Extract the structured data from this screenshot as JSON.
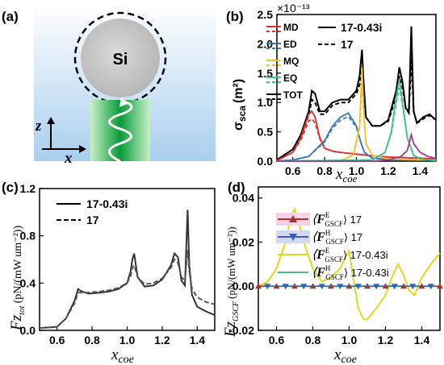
{
  "panel_a": {
    "label": "(a)",
    "particle_label": "Si",
    "axis_z": "z",
    "axis_x": "x"
  },
  "chart_data": [
    {
      "panel": "(b)",
      "type": "line",
      "ylabel_main": "σ",
      "ylabel_sub": "sca",
      "ylabel_unit": "(m²)",
      "xlabel_main": "x",
      "xlabel_sub": "coe",
      "sci_note": "×10⁻¹³",
      "xlim": [
        0.5,
        1.5
      ],
      "ylim": [
        0,
        2.5
      ],
      "xticks": [
        "0.6",
        "0.8",
        "1.0",
        "1.2",
        "1.4"
      ],
      "xtick_values": [
        0.6,
        0.8,
        1.0,
        1.2,
        1.4
      ],
      "yticks": [
        "0.0",
        "0.5",
        "1.0",
        "1.5",
        "2.0",
        "2.5"
      ],
      "ytick_values": [
        0,
        0.5,
        1.0,
        1.5,
        2.0,
        2.5
      ],
      "legend_components": [
        "MD",
        "ED",
        "MQ",
        "EQ",
        "TOT"
      ],
      "legend_cases": [
        "17-0.43i",
        "17"
      ],
      "colors": {
        "MD": "#e03030",
        "ED": "#3a78b4",
        "MQ": "#f2c230",
        "EQ": "#3fbf8a",
        "TOT": "#000000"
      },
      "series": [
        {
          "name": "TOT",
          "case": "17-0.43i",
          "x": [
            0.5,
            0.6,
            0.65,
            0.7,
            0.72,
            0.74,
            0.77,
            0.8,
            0.85,
            0.9,
            0.95,
            1.0,
            1.02,
            1.035,
            1.045,
            1.06,
            1.1,
            1.15,
            1.2,
            1.25,
            1.27,
            1.29,
            1.31,
            1.33,
            1.345,
            1.36,
            1.38,
            1.42,
            1.46,
            1.5
          ],
          "y": [
            0.02,
            0.2,
            0.45,
            0.85,
            1.2,
            1.15,
            0.85,
            0.85,
            1.0,
            1.05,
            1.05,
            1.2,
            1.45,
            1.9,
            1.35,
            0.75,
            0.6,
            0.6,
            0.7,
            1.2,
            1.6,
            1.35,
            0.9,
            0.85,
            2.3,
            0.85,
            0.65,
            0.75,
            0.8,
            0.7
          ]
        },
        {
          "name": "TOT",
          "case": "17",
          "x": [
            0.5,
            0.6,
            0.65,
            0.7,
            0.72,
            0.74,
            0.77,
            0.8,
            0.85,
            0.9,
            0.95,
            1.0,
            1.02,
            1.035,
            1.045,
            1.06,
            1.1,
            1.15,
            1.2,
            1.25,
            1.27,
            1.29,
            1.31,
            1.33,
            1.345,
            1.36,
            1.38,
            1.42,
            1.46,
            1.5
          ],
          "y": [
            0.02,
            0.2,
            0.4,
            0.78,
            1.05,
            1.0,
            0.8,
            0.8,
            0.95,
            1.0,
            1.0,
            1.15,
            1.3,
            1.6,
            1.2,
            0.75,
            0.6,
            0.6,
            0.68,
            1.1,
            1.45,
            1.25,
            0.9,
            0.82,
            1.75,
            0.85,
            0.65,
            0.72,
            0.78,
            0.7
          ]
        },
        {
          "name": "MD",
          "case": "17-0.43i",
          "x": [
            0.5,
            0.6,
            0.65,
            0.7,
            0.72,
            0.74,
            0.77,
            0.8,
            0.85,
            0.9,
            1.0,
            1.1,
            1.2,
            1.3,
            1.4,
            1.5
          ],
          "y": [
            0.01,
            0.15,
            0.4,
            0.8,
            0.85,
            0.75,
            0.4,
            0.22,
            0.17,
            0.15,
            0.12,
            0.09,
            0.07,
            0.06,
            0.05,
            0.04
          ]
        },
        {
          "name": "MD",
          "case": "17",
          "x": [
            0.5,
            0.6,
            0.65,
            0.7,
            0.72,
            0.74,
            0.77,
            0.8,
            0.85,
            0.9,
            1.0,
            1.1,
            1.2,
            1.3,
            1.4,
            1.5
          ],
          "y": [
            0.01,
            0.15,
            0.36,
            0.68,
            0.72,
            0.65,
            0.38,
            0.22,
            0.17,
            0.15,
            0.12,
            0.09,
            0.07,
            0.06,
            0.05,
            0.04
          ]
        },
        {
          "name": "ED",
          "case": "17-0.43i",
          "x": [
            0.5,
            0.6,
            0.7,
            0.8,
            0.85,
            0.9,
            0.95,
            1.0,
            1.03,
            1.05,
            1.1,
            1.2,
            1.3,
            1.4,
            1.5
          ],
          "y": [
            0.0,
            0.02,
            0.08,
            0.35,
            0.6,
            0.75,
            0.82,
            0.6,
            0.3,
            0.15,
            0.05,
            0.03,
            0.02,
            0.02,
            0.02
          ]
        },
        {
          "name": "ED",
          "case": "17",
          "x": [
            0.5,
            0.6,
            0.7,
            0.8,
            0.85,
            0.9,
            0.95,
            1.0,
            1.03,
            1.05,
            1.1,
            1.2,
            1.3,
            1.4,
            1.5
          ],
          "y": [
            0.0,
            0.02,
            0.08,
            0.33,
            0.56,
            0.7,
            0.76,
            0.58,
            0.3,
            0.15,
            0.05,
            0.03,
            0.02,
            0.02,
            0.02
          ]
        },
        {
          "name": "MQ",
          "case": "17-0.43i",
          "x": [
            0.5,
            0.9,
            0.98,
            1.02,
            1.035,
            1.045,
            1.06,
            1.1,
            1.2,
            1.3,
            1.4,
            1.5
          ],
          "y": [
            0.0,
            0.01,
            0.1,
            0.6,
            1.6,
            0.9,
            0.3,
            0.1,
            0.04,
            0.03,
            0.02,
            0.02
          ]
        },
        {
          "name": "MQ",
          "case": "17",
          "x": [
            0.5,
            0.9,
            0.98,
            1.02,
            1.035,
            1.045,
            1.06,
            1.1,
            1.2,
            1.3,
            1.4,
            1.5
          ],
          "y": [
            0.0,
            0.01,
            0.1,
            0.55,
            1.35,
            0.85,
            0.3,
            0.1,
            0.04,
            0.03,
            0.02,
            0.02
          ]
        },
        {
          "name": "EQ",
          "case": "17-0.43i",
          "x": [
            0.5,
            1.1,
            1.18,
            1.22,
            1.25,
            1.27,
            1.29,
            1.32,
            1.36,
            1.4,
            1.45,
            1.5
          ],
          "y": [
            0.0,
            0.02,
            0.15,
            0.5,
            1.1,
            1.4,
            1.0,
            0.4,
            0.1,
            0.04,
            0.02,
            0.01
          ]
        },
        {
          "name": "EQ",
          "case": "17",
          "x": [
            0.5,
            1.1,
            1.18,
            1.22,
            1.25,
            1.27,
            1.29,
            1.32,
            1.36,
            1.4,
            1.45,
            1.5
          ],
          "y": [
            0.0,
            0.02,
            0.15,
            0.48,
            1.0,
            1.25,
            0.95,
            0.4,
            0.1,
            0.04,
            0.02,
            0.01
          ]
        },
        {
          "name": "",
          "case": "17-0.43i",
          "color": "#9b3b8f",
          "x": [
            0.5,
            1.1,
            1.2,
            1.28,
            1.32,
            1.345,
            1.36,
            1.4,
            1.45,
            1.5
          ],
          "y": [
            0.0,
            0.0,
            0.02,
            0.08,
            0.18,
            0.45,
            0.3,
            0.15,
            0.08,
            0.05
          ]
        }
      ]
    },
    {
      "panel": "(c)",
      "type": "line",
      "ylabel_main": "Fz",
      "ylabel_sub": "tot",
      "ylabel_unit": "(pN/(mW um⁻²))",
      "xlabel_main": "x",
      "xlabel_sub": "coe",
      "xlim": [
        0.5,
        1.5
      ],
      "ylim": [
        0,
        1.2
      ],
      "xticks": [
        "0.6",
        "0.8",
        "1.0",
        "1.2",
        "1.4"
      ],
      "xtick_values": [
        0.6,
        0.8,
        1.0,
        1.2,
        1.4
      ],
      "yticks": [
        "0.0",
        "0.4",
        "0.8",
        "1.2"
      ],
      "ytick_values": [
        0,
        0.4,
        0.8,
        1.2
      ],
      "series": [
        {
          "name": "17-0.43i",
          "dash": false,
          "x": [
            0.5,
            0.6,
            0.65,
            0.7,
            0.72,
            0.74,
            0.78,
            0.85,
            0.9,
            0.95,
            1.0,
            1.02,
            1.03,
            1.04,
            1.06,
            1.1,
            1.15,
            1.2,
            1.25,
            1.27,
            1.29,
            1.31,
            1.33,
            1.345,
            1.355,
            1.37,
            1.4,
            1.45,
            1.5
          ],
          "y": [
            0.02,
            0.03,
            0.1,
            0.25,
            0.35,
            0.33,
            0.31,
            0.32,
            0.33,
            0.35,
            0.4,
            0.5,
            0.6,
            0.65,
            0.45,
            0.37,
            0.38,
            0.43,
            0.55,
            0.65,
            0.62,
            0.42,
            0.38,
            1.02,
            0.55,
            0.3,
            0.2,
            0.16,
            0.13
          ]
        },
        {
          "name": "17",
          "dash": true,
          "x": [
            0.5,
            0.6,
            0.65,
            0.7,
            0.72,
            0.74,
            0.78,
            0.85,
            0.9,
            0.95,
            1.0,
            1.02,
            1.03,
            1.04,
            1.06,
            1.1,
            1.15,
            1.2,
            1.25,
            1.27,
            1.29,
            1.31,
            1.33,
            1.345,
            1.355,
            1.37,
            1.4,
            1.45,
            1.5
          ],
          "y": [
            0.02,
            0.03,
            0.1,
            0.23,
            0.32,
            0.32,
            0.32,
            0.33,
            0.34,
            0.36,
            0.4,
            0.46,
            0.53,
            0.55,
            0.45,
            0.39,
            0.4,
            0.44,
            0.53,
            0.6,
            0.57,
            0.45,
            0.42,
            0.68,
            0.5,
            0.35,
            0.28,
            0.24,
            0.22
          ]
        }
      ]
    },
    {
      "panel": "(d)",
      "type": "line",
      "ylabel_main": "Fz",
      "ylabel_sub": "GSCF",
      "ylabel_unit": "(pN/(mW um⁻²))",
      "xlabel_main": "x",
      "xlabel_sub": "coe",
      "xlim": [
        0.5,
        1.5
      ],
      "ylim": [
        -0.02,
        0.045
      ],
      "xticks": [
        "0.6",
        "0.8",
        "1.0",
        "1.2",
        "1.4"
      ],
      "xtick_values": [
        0.6,
        0.8,
        1.0,
        1.2,
        1.4
      ],
      "yticks": [
        "0.04",
        "0.02",
        "0.00",
        "-0.02"
      ],
      "ytick_values": [
        0.04,
        0.02,
        0.0,
        -0.02
      ],
      "legend": [
        {
          "symbol": "E",
          "case": "17",
          "marker": "triangle-up",
          "color": "#b03030"
        },
        {
          "symbol": "H",
          "case": "17",
          "marker": "triangle-down",
          "color": "#3a60b0"
        },
        {
          "symbol": "E",
          "case": "17-0.43i",
          "marker": "none",
          "color": "#e0d820"
        },
        {
          "symbol": "H",
          "case": "17-0.43i",
          "marker": "none",
          "color": "#4cbf7a"
        }
      ],
      "series": [
        {
          "name": "⟨F^E_GSCF⟩ 17-0.43i",
          "color": "#e0d820",
          "x": [
            0.5,
            0.55,
            0.6,
            0.65,
            0.68,
            0.7,
            0.72,
            0.75,
            0.8,
            0.85,
            0.9,
            0.95,
            0.98,
            1.0,
            1.02,
            1.05,
            1.08,
            1.1,
            1.15,
            1.2,
            1.24,
            1.27,
            1.3,
            1.33,
            1.36,
            1.4,
            1.45,
            1.5
          ],
          "y": [
            0.0,
            0.002,
            0.008,
            0.02,
            0.032,
            0.035,
            0.03,
            0.02,
            0.008,
            0.002,
            0.004,
            0.008,
            0.013,
            0.016,
            0.005,
            -0.01,
            -0.015,
            -0.015,
            -0.01,
            -0.004,
            0.005,
            0.01,
            0.005,
            -0.002,
            -0.004,
            0.004,
            0.01,
            0.015
          ]
        },
        {
          "name": "⟨F^H_GSCF⟩ 17-0.43i",
          "color": "#4cbf7a",
          "x": [
            0.5,
            1.5
          ],
          "y": [
            0.0,
            0.0
          ]
        },
        {
          "name": "⟨F^E_GSCF⟩ 17",
          "color": "#b03030",
          "marker": "triangle-up",
          "x": [
            0.5,
            0.6,
            0.7,
            0.8,
            0.9,
            1.0,
            1.1,
            1.2,
            1.3,
            1.4,
            1.5
          ],
          "y": [
            0,
            0,
            0,
            0,
            0,
            0,
            0,
            0,
            0,
            0,
            0
          ]
        },
        {
          "name": "⟨F^H_GSCF⟩ 17",
          "color": "#3a60b0",
          "marker": "triangle-down",
          "x": [
            0.55,
            0.65,
            0.75,
            0.85,
            0.95,
            1.05,
            1.15,
            1.25,
            1.35,
            1.45
          ],
          "y": [
            0,
            0,
            0,
            0,
            0,
            0,
            0,
            0,
            0,
            0
          ]
        }
      ]
    }
  ]
}
